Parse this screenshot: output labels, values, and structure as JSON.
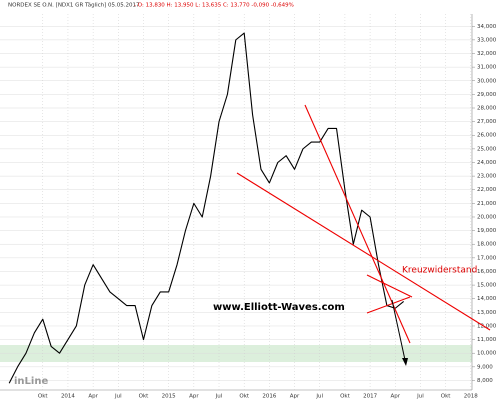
{
  "chart_data": {
    "type": "line",
    "title": "NORDEX SE O.N. [NDX1 GR Täglich] 05.05.2017",
    "ohlc": "- O: 13,830 H: 13,950 L: 13,635 C: 13,770 -0,090 -0,649%",
    "annotations": [
      "Kreuzwiderstand",
      "www.Elliott-Waves.com"
    ],
    "logo": "inLine",
    "categories": [
      null,
      null,
      null,
      null,
      "Okt",
      null,
      null,
      "2014",
      null,
      null,
      "Apr",
      null,
      null,
      "Jul",
      null,
      null,
      "Okt",
      null,
      null,
      "2015",
      null,
      null,
      "Apr",
      null,
      null,
      "Jul",
      null,
      null,
      "Okt",
      null,
      null,
      "2016",
      null,
      null,
      "Apr",
      null,
      null,
      "Jul",
      null,
      null,
      "Okt",
      null,
      null,
      "2017",
      null,
      null,
      "Apr",
      null,
      null,
      "Jul",
      null,
      null,
      "Okt",
      null,
      null,
      "2018"
    ],
    "series": [
      {
        "color": "#000000",
        "values": [
          7.8,
          9,
          10,
          11.5,
          12.5,
          10.5,
          10,
          11,
          12,
          15,
          16.5,
          15.5,
          14.5,
          14,
          13.5,
          13.5,
          11,
          13.5,
          14.5,
          14.5,
          16.5,
          19,
          21,
          20,
          23,
          27,
          29,
          33,
          33.5,
          27.5,
          23.5,
          22.5,
          24,
          24.5,
          23.5,
          25,
          25.5,
          25.5,
          26.5,
          26.5,
          22,
          18,
          20.5,
          20,
          16.5,
          13.5,
          13.3,
          13.8,
          null,
          null,
          null,
          null,
          null,
          null,
          null,
          null
        ]
      }
    ],
    "ylim": [
      7.3,
      34.9
    ],
    "yticks": [
      {
        "value": 8,
        "label": "8,000"
      },
      {
        "value": 9,
        "label": "9,000"
      },
      {
        "value": 10,
        "label": "10,000"
      },
      {
        "value": 11,
        "label": "11,000"
      },
      {
        "value": 12,
        "label": "12,000"
      },
      {
        "value": 13,
        "label": "13,000"
      },
      {
        "value": 14,
        "label": "14,000"
      },
      {
        "value": 15,
        "label": "15,000"
      },
      {
        "value": 16,
        "label": "16,000"
      },
      {
        "value": 17,
        "label": "17,000"
      },
      {
        "value": 18,
        "label": "18,000"
      },
      {
        "value": 19,
        "label": "19,000"
      },
      {
        "value": 20,
        "label": "20,000"
      },
      {
        "value": 21,
        "label": "21,000"
      },
      {
        "value": 22,
        "label": "22,000"
      },
      {
        "value": 23,
        "label": "23,000"
      },
      {
        "value": 24,
        "label": "24,000"
      },
      {
        "value": 25,
        "label": "25,000"
      },
      {
        "value": 26,
        "label": "26,000"
      },
      {
        "value": 27,
        "label": "27,000"
      },
      {
        "value": 28,
        "label": "28,000"
      },
      {
        "value": 29,
        "label": "29,000"
      },
      {
        "value": 30,
        "label": "30,000"
      },
      {
        "value": 31,
        "label": "31,000"
      },
      {
        "value": 32,
        "label": "32,000"
      },
      {
        "value": 33,
        "label": "33,000"
      },
      {
        "value": 34,
        "label": "34,000"
      }
    ],
    "grid": true
  }
}
